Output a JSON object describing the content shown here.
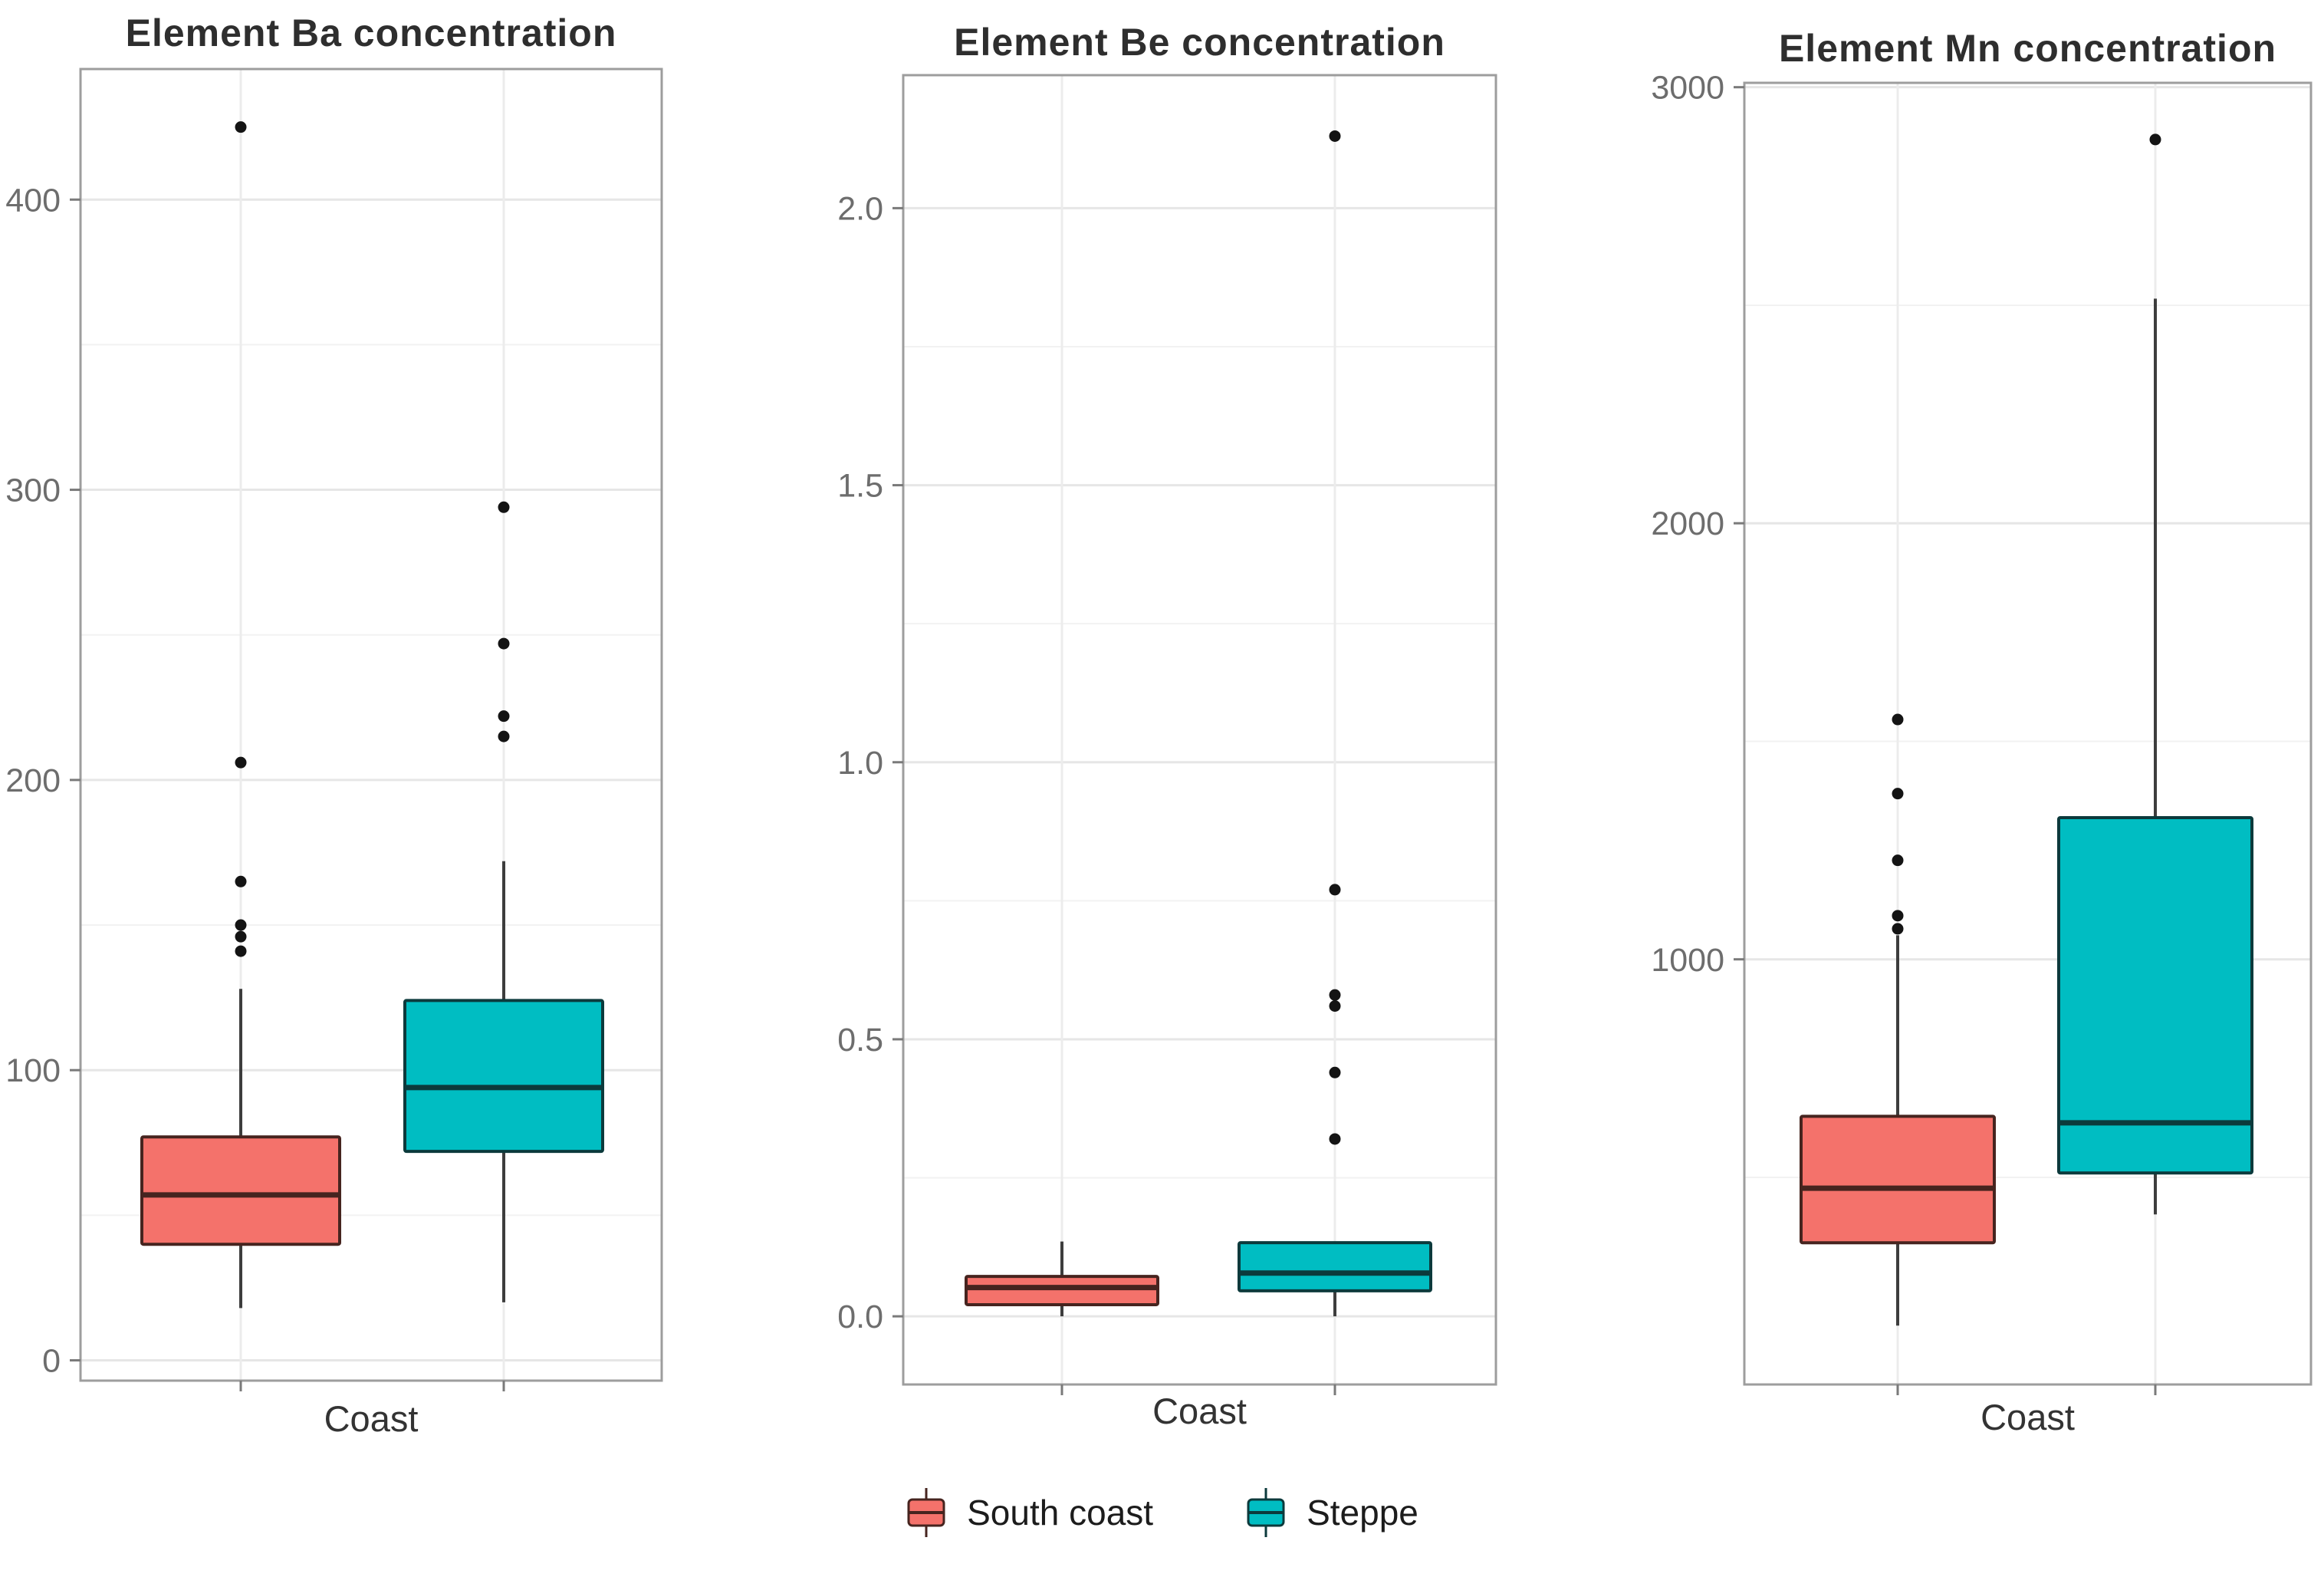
{
  "figure": {
    "background": "#ffffff"
  },
  "legend": {
    "items": [
      {
        "label": "South coast",
        "color": "#F4726B",
        "stroke": "#46241F"
      },
      {
        "label": "Steppe",
        "color": "#00BDC2",
        "stroke": "#0C3A3C"
      }
    ]
  },
  "axis_style": {
    "tick_label_color": "#6d6d6d",
    "grid_major_color": "#e6e6e6",
    "grid_minor_color": "#f2f2f2",
    "panel_border_color": "#9d9d9d",
    "whisker_color": "#3d3d3d",
    "outlier_color": "#141414"
  },
  "chart_data": [
    {
      "type": "boxplot",
      "title": "Element Ba concentration",
      "xlabel": "Coast",
      "ylim": [
        -7,
        445
      ],
      "yticks": [
        0,
        100,
        200,
        300,
        400
      ],
      "ytick_labels": [
        "0",
        "100",
        "200",
        "300",
        "400"
      ],
      "grid": "major+minor",
      "legend_position": "bottom",
      "series": [
        {
          "name": "South coast",
          "color": "#F4726B",
          "stroke": "#46241F",
          "whisker_low": 18,
          "q1": 40,
          "median": 57,
          "q3": 77,
          "whisker_high": 128,
          "outliers": [
            425,
            206,
            165,
            150,
            146,
            141
          ]
        },
        {
          "name": "Steppe",
          "color": "#00BDC2",
          "stroke": "#0C3A3C",
          "whisker_low": 20,
          "q1": 72,
          "median": 94,
          "q3": 124,
          "whisker_high": 172,
          "outliers": [
            294,
            247,
            222,
            215
          ]
        }
      ]
    },
    {
      "type": "boxplot",
      "title": "Element Be concentration",
      "xlabel": "Coast",
      "ylim": [
        -0.123,
        2.24
      ],
      "yticks": [
        0.0,
        0.5,
        1.0,
        1.5,
        2.0
      ],
      "ytick_labels": [
        "0.0",
        "0.5",
        "1.0",
        "1.5",
        "2.0"
      ],
      "grid": "major+minor",
      "legend_position": "bottom",
      "series": [
        {
          "name": "South coast",
          "color": "#F4726B",
          "stroke": "#46241F",
          "whisker_low": 0.0,
          "q1": 0.021,
          "median": 0.052,
          "q3": 0.072,
          "whisker_high": 0.135,
          "outliers": []
        },
        {
          "name": "Steppe",
          "color": "#00BDC2",
          "stroke": "#0C3A3C",
          "whisker_low": 0.0,
          "q1": 0.046,
          "median": 0.078,
          "q3": 0.133,
          "whisker_high": 0.133,
          "outliers": [
            2.13,
            0.77,
            0.58,
            0.56,
            0.44,
            0.32
          ]
        }
      ]
    },
    {
      "type": "boxplot",
      "title": "Element Mn concentration",
      "xlabel": "Coast",
      "ylim": [
        25,
        3010
      ],
      "yticks": [
        1000,
        2000,
        3000
      ],
      "ytick_labels": [
        "1000",
        "2000",
        "3000"
      ],
      "grid": "major+minor",
      "legend_position": "bottom",
      "series": [
        {
          "name": "South coast",
          "color": "#F4726B",
          "stroke": "#46241F",
          "whisker_low": 160,
          "q1": 350,
          "median": 475,
          "q3": 640,
          "whisker_high": 1055,
          "outliers": [
            1550,
            1380,
            1227,
            1100,
            1070
          ]
        },
        {
          "name": "Steppe",
          "color": "#00BDC2",
          "stroke": "#0C3A3C",
          "whisker_low": 415,
          "q1": 510,
          "median": 625,
          "q3": 1325,
          "whisker_high": 2515,
          "outliers": [
            2880
          ]
        }
      ]
    }
  ]
}
